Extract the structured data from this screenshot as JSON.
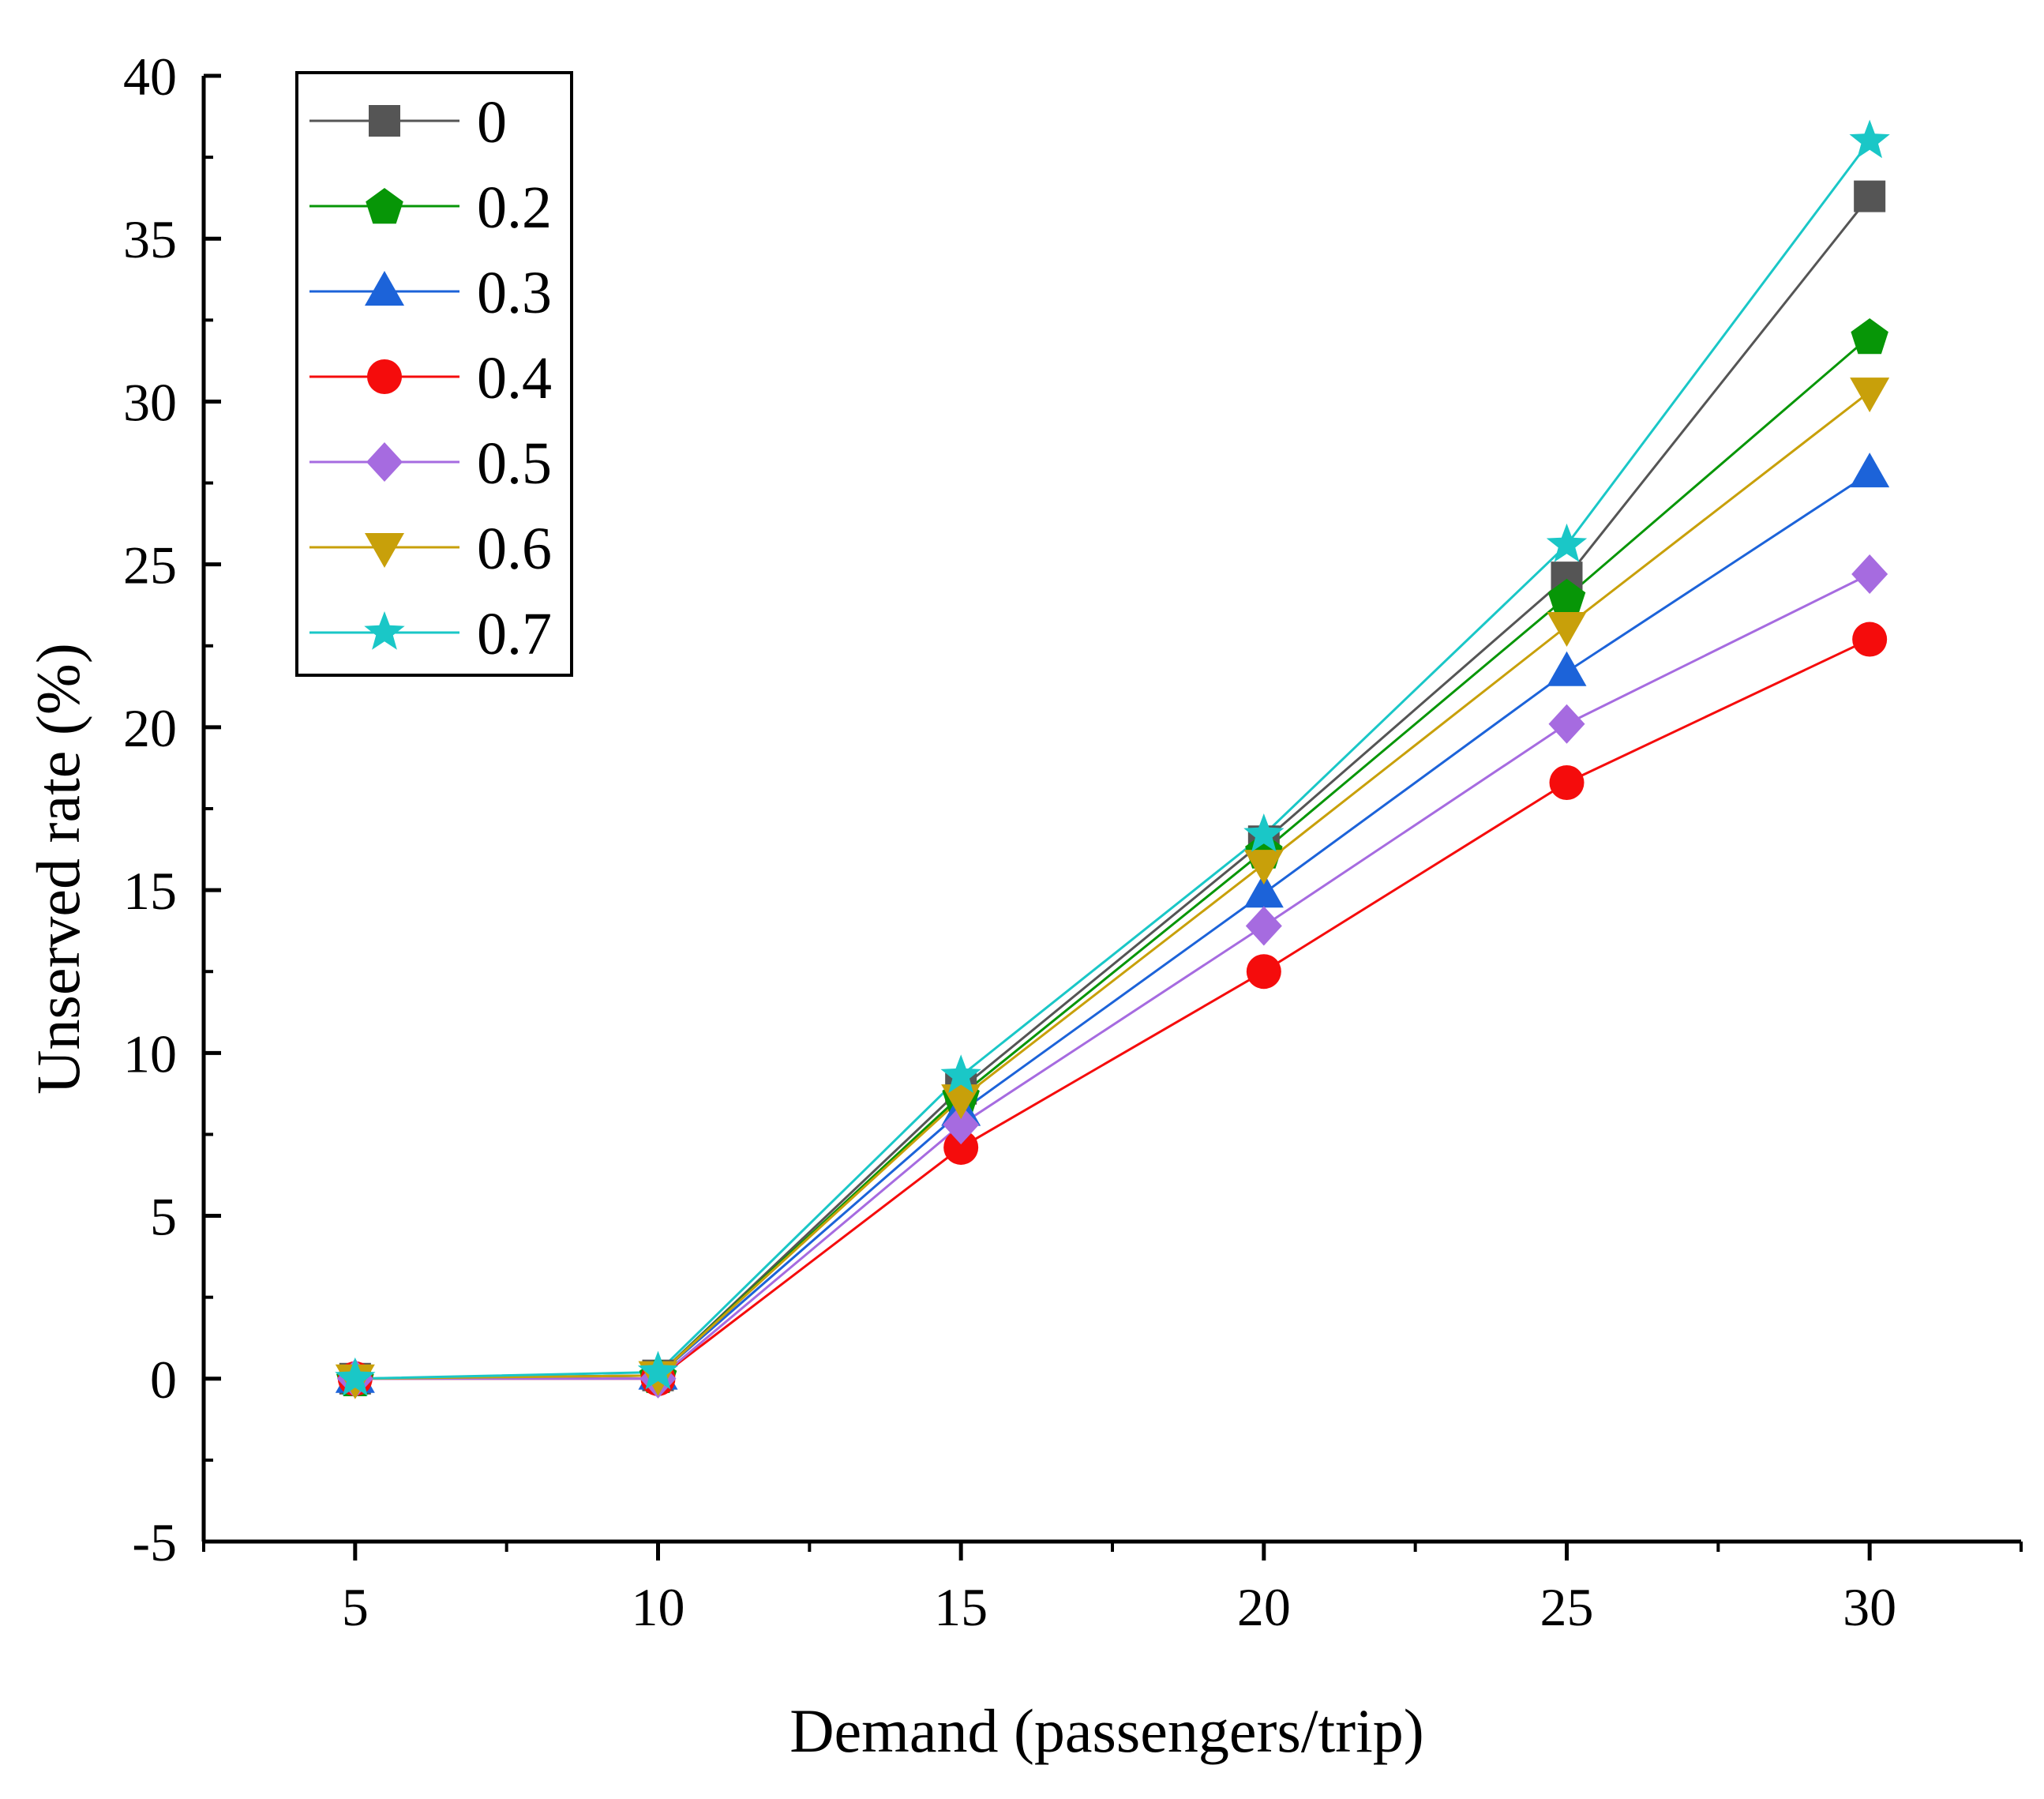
{
  "chart_data": {
    "type": "line",
    "title": "",
    "xlabel": "Demand (passengers/trip)",
    "ylabel": "Unserved rate (%)",
    "x": [
      5,
      10,
      15,
      20,
      25,
      30
    ],
    "xlim": [
      2.5,
      32.5
    ],
    "ylim": [
      -5,
      40
    ],
    "xticks": [
      5,
      10,
      15,
      20,
      25,
      30
    ],
    "yticks": [
      -5,
      0,
      5,
      10,
      15,
      20,
      25,
      30,
      35,
      40
    ],
    "grid": false,
    "legend_position": "top-left",
    "series": [
      {
        "name": "0",
        "color": "#555555",
        "marker": "square",
        "values": [
          0,
          0.1,
          8.9,
          16.5,
          24.6,
          36.3
        ]
      },
      {
        "name": "0.2",
        "color": "#079607",
        "marker": "pentagon",
        "values": [
          0,
          0.1,
          8.7,
          16.2,
          24.0,
          32.0
        ]
      },
      {
        "name": "0.3",
        "color": "#1c63d9",
        "marker": "triangle-up",
        "values": [
          0,
          0.1,
          8.2,
          14.9,
          21.7,
          27.8
        ]
      },
      {
        "name": "0.4",
        "color": "#f50c0c",
        "marker": "circle",
        "values": [
          0,
          0.0,
          7.1,
          12.5,
          18.3,
          22.7
        ]
      },
      {
        "name": "0.5",
        "color": "#a66be0",
        "marker": "diamond",
        "values": [
          0,
          0.0,
          7.8,
          13.9,
          20.1,
          24.7
        ]
      },
      {
        "name": "0.6",
        "color": "#c8a00a",
        "marker": "triangle-down",
        "values": [
          0,
          0.1,
          8.6,
          15.8,
          23.1,
          30.3
        ]
      },
      {
        "name": "0.7",
        "color": "#1ac7c7",
        "marker": "star",
        "values": [
          0,
          0.2,
          9.3,
          16.7,
          25.6,
          38.0
        ]
      }
    ]
  }
}
